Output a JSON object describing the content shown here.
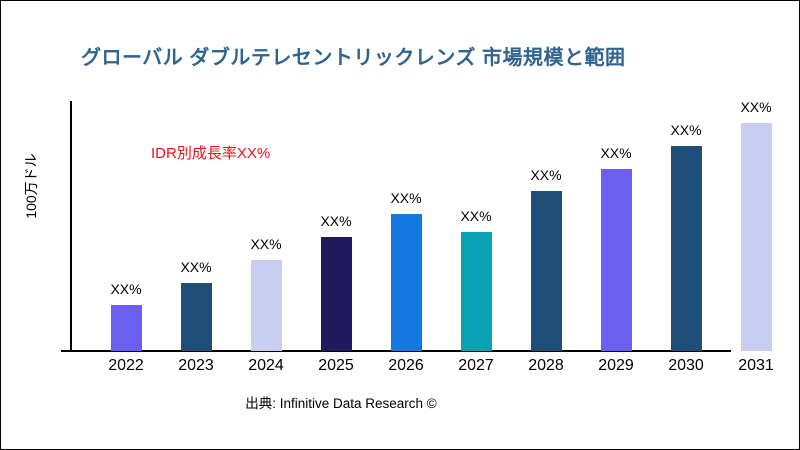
{
  "title": {
    "text": "グローバル ダブルテレセントリックレンズ 市場規模と範囲",
    "color": "#2F6490"
  },
  "annotation": {
    "text": "IDR別成長率XX%",
    "color": "#E8141C"
  },
  "y_axis_label": "100万ドル",
  "footer": {
    "source_text": "出典: Infinitive Data Research ©"
  },
  "chart_data": {
    "type": "bar",
    "title": "グローバル ダブルテレセントリックレンズ 市場規模と範囲",
    "xlabel": "",
    "ylabel": "100万ドル",
    "categories": [
      "2022",
      "2023",
      "2024",
      "2025",
      "2026",
      "2027",
      "2028",
      "2029",
      "2030",
      "2031"
    ],
    "values": [
      20,
      30,
      40,
      50,
      60,
      52,
      70,
      80,
      90,
      100
    ],
    "value_note": "bar values are masked as XX% in the chart; heights estimated as percent of tallest (2031) bar",
    "bar_labels": [
      "XX%",
      "XX%",
      "XX%",
      "XX%",
      "XX%",
      "XX%",
      "XX%",
      "XX%",
      "XX%",
      "XX%"
    ],
    "bar_colors": [
      "#6A5FEF",
      "#1F4E79",
      "#C9CDF0",
      "#211A5E",
      "#1478E0",
      "#0AA3B5",
      "#1F4E79",
      "#6A5FEF",
      "#1F4E79",
      "#C9CDF0"
    ],
    "annotation": "IDR別成長率XX%",
    "legend": null,
    "grid": false,
    "ylim": [
      0,
      100
    ]
  }
}
